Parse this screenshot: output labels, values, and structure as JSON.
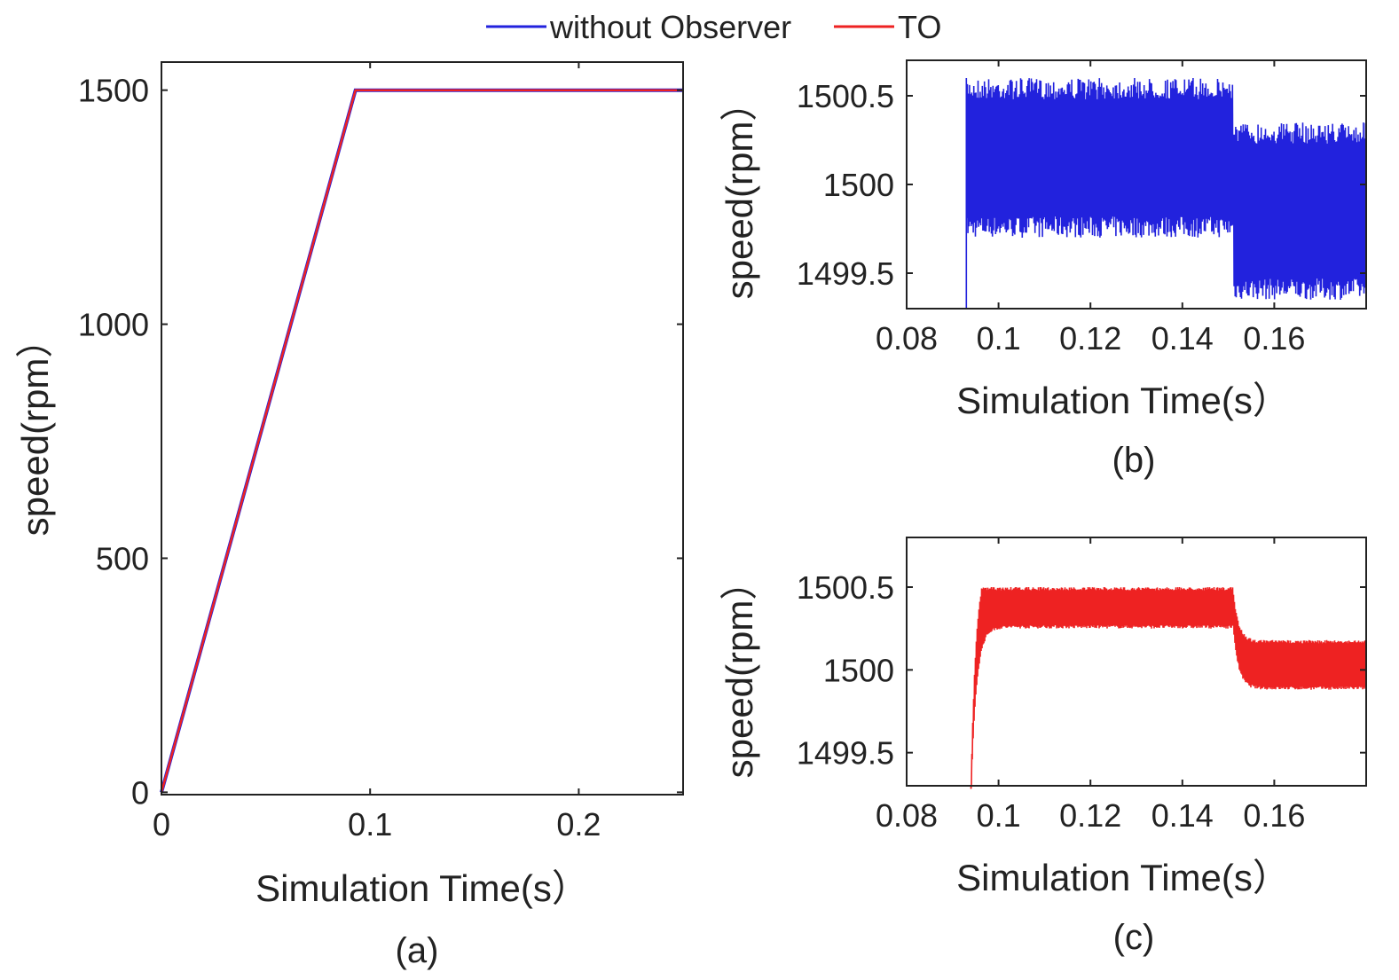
{
  "legend": {
    "entries": [
      {
        "label": "without Observer",
        "color": "#2222dd"
      },
      {
        "label": "TO",
        "color": "#ee2222"
      }
    ]
  },
  "chart_data": [
    {
      "id": "a",
      "type": "line",
      "caption": "(a)",
      "xlabel": "Simulation Time(s）",
      "ylabel": "speed(rpm）",
      "xlim": [
        0,
        0.25
      ],
      "ylim": [
        -5,
        1560
      ],
      "xticks": [
        0,
        0.1,
        0.2
      ],
      "xtick_labels": [
        "0",
        "0.1",
        "0.2"
      ],
      "yticks": [
        0,
        500,
        1000,
        1500
      ],
      "ytick_labels": [
        "0",
        "500",
        "1000",
        "1500"
      ],
      "series": [
        {
          "name": "without Observer",
          "color": "#2222dd",
          "x": [
            0,
            0.093,
            0.25
          ],
          "y": [
            0,
            1500,
            1500
          ]
        },
        {
          "name": "TO",
          "color": "#ee2222",
          "x": [
            0,
            0.093,
            0.25
          ],
          "y": [
            0,
            1500,
            1500
          ]
        }
      ]
    },
    {
      "id": "b",
      "type": "line",
      "caption": "(b)",
      "xlabel": "Simulation Time(s）",
      "ylabel": "speed(rpm）",
      "xlim": [
        0.08,
        0.18
      ],
      "ylim": [
        1499.3,
        1500.7
      ],
      "xticks": [
        0.08,
        0.1,
        0.12,
        0.14,
        0.16
      ],
      "xtick_labels": [
        "0.08",
        "0.1",
        "0.12",
        "0.14",
        "0.16"
      ],
      "yticks": [
        1499.5,
        1500,
        1500.5
      ],
      "ytick_labels": [
        "1499.5",
        "1500",
        "1500.5"
      ],
      "series": [
        {
          "name": "without Observer",
          "color": "#2222dd",
          "note": "high-frequency ripple band",
          "t_start": 0.093,
          "t_step": 0.151,
          "t_end": 0.18,
          "band_before": [
            1499.7,
            1500.6
          ],
          "band_after": [
            1499.35,
            1500.35
          ]
        }
      ]
    },
    {
      "id": "c",
      "type": "line",
      "caption": "(c)",
      "xlabel": "Simulation Time(s）",
      "ylabel": "speed(rpm）",
      "xlim": [
        0.08,
        0.18
      ],
      "ylim": [
        1499.3,
        1500.8
      ],
      "xticks": [
        0.08,
        0.1,
        0.12,
        0.14,
        0.16
      ],
      "xtick_labels": [
        "0.08",
        "0.1",
        "0.12",
        "0.14",
        "0.16"
      ],
      "yticks": [
        1499.5,
        1500,
        1500.5
      ],
      "ytick_labels": [
        "1499.5",
        "1500",
        "1500.5"
      ],
      "series": [
        {
          "name": "TO",
          "color": "#ee2222",
          "note": "ripple band",
          "t_start": 0.094,
          "t_step": 0.151,
          "t_end": 0.18,
          "band_before": [
            1500.25,
            1500.5
          ],
          "band_after": [
            1499.88,
            1500.18
          ]
        }
      ]
    }
  ]
}
